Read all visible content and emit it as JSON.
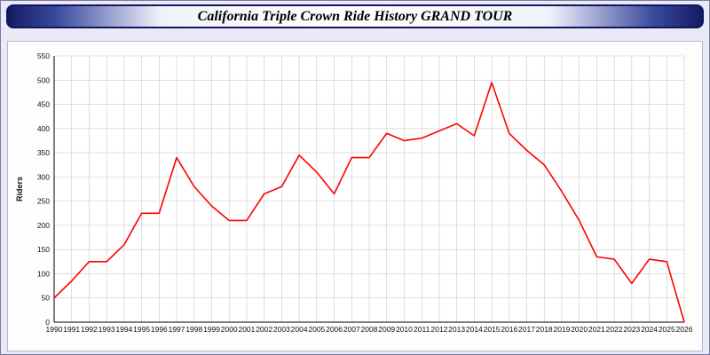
{
  "header": {
    "title": "California Triple Crown Ride History GRAND TOUR"
  },
  "chart_data": {
    "type": "line",
    "title": "California Triple Crown Ride History GRAND TOUR",
    "xlabel": "",
    "ylabel": "Riders",
    "ylim": [
      0,
      550
    ],
    "ytick_step": 50,
    "grid": true,
    "legend": "none",
    "line_color": "#ff0000",
    "grid_color": "#c9c9c9",
    "categories": [
      "1990",
      "1991",
      "1992",
      "1993",
      "1994",
      "1995",
      "1996",
      "1997",
      "1998",
      "1999",
      "2000",
      "2001",
      "2002",
      "2003",
      "2004",
      "2005",
      "2006",
      "2007",
      "2008",
      "2009",
      "2010",
      "2011",
      "2012",
      "2013",
      "2014",
      "2015",
      "2016",
      "2017",
      "2018",
      "2019",
      "2020",
      "2021",
      "2022",
      "2023",
      "2024",
      "2025",
      "2026"
    ],
    "values": [
      50,
      85,
      125,
      125,
      160,
      225,
      225,
      340,
      280,
      240,
      210,
      210,
      265,
      280,
      345,
      310,
      265,
      340,
      340,
      390,
      375,
      380,
      395,
      410,
      385,
      495,
      390,
      355,
      325,
      270,
      210,
      135,
      130,
      80,
      130,
      125,
      0
    ]
  },
  "colors": {
    "page_background": "#e9e9f7",
    "titlebar_navy": "#141b63",
    "plot_background": "#ffffff"
  }
}
